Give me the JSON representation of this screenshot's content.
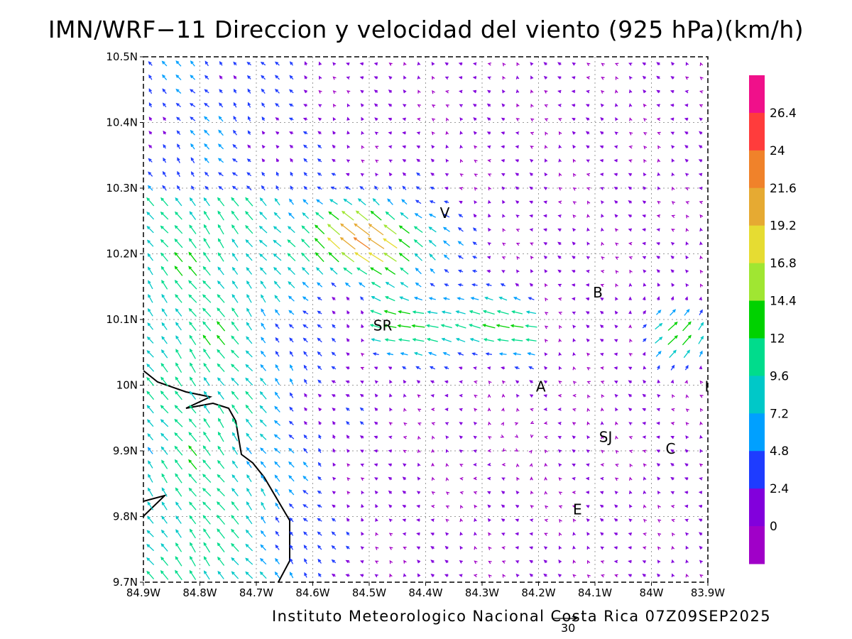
{
  "title": "IMN/WRF−11 Direccion y velocidad del viento (925 hPa)(km/h)",
  "footer": "Instituto Meteorologico Nacional Costa Rica 07Z09SEP2025",
  "scale_arrow_label": "30",
  "map": {
    "lon_ticks": [
      "84.9W",
      "84.8W",
      "84.7W",
      "84.6W",
      "84.5W",
      "84.4W",
      "84.3W",
      "84.2W",
      "84.1W",
      "84W",
      "83.9W"
    ],
    "lat_ticks": [
      "10.5N",
      "10.4N",
      "10.3N",
      "10.2N",
      "10.1N",
      "10N",
      "9.9N",
      "9.8N",
      "9.7N"
    ],
    "lon_range": [
      -84.9,
      -83.9
    ],
    "lat_range": [
      9.7,
      10.5
    ],
    "grid": true,
    "city_labels": [
      {
        "label": "V",
        "lon": -84.366,
        "lat": 10.262
      },
      {
        "label": "B",
        "lon": -84.095,
        "lat": 10.141
      },
      {
        "label": "SR",
        "lon": -84.476,
        "lat": 10.091
      },
      {
        "label": "A",
        "lon": -84.196,
        "lat": 9.998
      },
      {
        "label": "I",
        "lon": -83.902,
        "lat": 9.998
      },
      {
        "label": "SJ",
        "lon": -84.081,
        "lat": 9.921
      },
      {
        "label": "C",
        "lon": -83.966,
        "lat": 9.903
      },
      {
        "label": "E",
        "lon": -84.131,
        "lat": 9.811
      }
    ]
  },
  "colorbar": {
    "labels": [
      "26.4",
      "24",
      "21.6",
      "19.2",
      "16.8",
      "14.4",
      "12",
      "9.6",
      "7.2",
      "4.8",
      "2.4",
      "0"
    ],
    "colors": [
      "#f0108a",
      "#ff3c3c",
      "#f0822a",
      "#e6aa32",
      "#e6dc32",
      "#a0e632",
      "#00d200",
      "#00dc8c",
      "#00c8c8",
      "#00a0ff",
      "#1e3cff",
      "#8200dc",
      "#a000c8"
    ]
  }
}
